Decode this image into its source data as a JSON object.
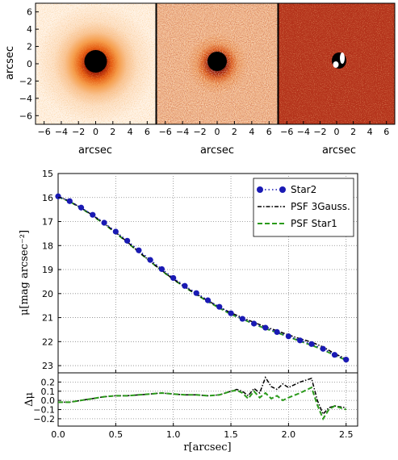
{
  "chart_data": [
    {
      "type": "heatmap",
      "panel": "image-left",
      "ylabel": "arcsec",
      "xlabel": "arcsec",
      "xticks": [
        "−6",
        "−4",
        "−2",
        "0",
        "2",
        "4",
        "6"
      ],
      "yticks": [
        "6",
        "4",
        "2",
        "0",
        "−2",
        "−4",
        "−6"
      ],
      "xlim": [
        -7,
        7
      ],
      "ylim": [
        -7,
        7
      ],
      "colormap": [
        "#ffffff",
        "#f7c08a",
        "#ee7a22",
        "#c13a0a",
        "#6a0e04",
        "#000000"
      ],
      "peak_core_radius": 1.2
    },
    {
      "type": "heatmap",
      "panel": "image-middle",
      "xlabel": "arcsec",
      "xticks": [
        "−6",
        "−4",
        "−2",
        "0",
        "2",
        "4",
        "6"
      ],
      "xlim": [
        -7,
        7
      ],
      "ylim": [
        -7,
        7
      ],
      "peak_core_radius": 1.1
    },
    {
      "type": "heatmap",
      "panel": "image-right",
      "xlabel": "arcsec",
      "xticks": [
        "−6",
        "−4",
        "−2",
        "0",
        "2",
        "4",
        "6"
      ],
      "xlim": [
        -7,
        7
      ],
      "ylim": [
        -7,
        7
      ],
      "residual_background": "#b4321a"
    },
    {
      "type": "line",
      "panel": "profile",
      "ylabel": "μ[mag arcsec⁻²]",
      "xlim": [
        0,
        2.6
      ],
      "ylim": [
        23.3,
        15
      ],
      "yticks": [
        "15",
        "16",
        "17",
        "18",
        "19",
        "20",
        "21",
        "22",
        "23"
      ],
      "grid": true,
      "legend_position": "top-right",
      "series": [
        {
          "name": "Star2",
          "color": "#1a1ab4",
          "style": "dot-marker",
          "x": [
            0.0,
            0.1,
            0.2,
            0.3,
            0.4,
            0.5,
            0.6,
            0.7,
            0.8,
            0.9,
            1.0,
            1.1,
            1.2,
            1.3,
            1.4,
            1.5,
            1.6,
            1.7,
            1.8,
            1.9,
            2.0,
            2.1,
            2.2,
            2.3,
            2.4,
            2.5
          ],
          "y": [
            15.95,
            16.15,
            16.42,
            16.72,
            17.05,
            17.42,
            17.8,
            18.2,
            18.6,
            18.98,
            19.35,
            19.68,
            19.98,
            20.28,
            20.55,
            20.82,
            21.05,
            21.25,
            21.42,
            21.6,
            21.78,
            21.95,
            22.1,
            22.3,
            22.55,
            22.75
          ]
        },
        {
          "name": "PSF 3Gauss.",
          "color": "#000000",
          "style": "dash-dot",
          "x": [
            0.0,
            0.1,
            0.2,
            0.3,
            0.4,
            0.5,
            0.6,
            0.7,
            0.8,
            0.9,
            1.0,
            1.1,
            1.2,
            1.3,
            1.4,
            1.5,
            1.6,
            1.7,
            1.8,
            1.9,
            2.0,
            2.1,
            2.2,
            2.3,
            2.4,
            2.5
          ],
          "y": [
            15.95,
            16.16,
            16.43,
            16.74,
            17.08,
            17.45,
            17.85,
            18.26,
            18.66,
            19.04,
            19.4,
            19.72,
            20.02,
            20.3,
            20.56,
            20.8,
            21.0,
            21.2,
            21.38,
            21.55,
            21.72,
            21.88,
            22.02,
            22.22,
            22.5,
            22.72
          ]
        },
        {
          "name": "PSF Star1",
          "color": "#2a9a1a",
          "style": "dashed",
          "x": [
            0.0,
            0.1,
            0.2,
            0.3,
            0.4,
            0.5,
            0.6,
            0.7,
            0.8,
            0.9,
            1.0,
            1.1,
            1.2,
            1.3,
            1.4,
            1.5,
            1.6,
            1.7,
            1.8,
            1.9,
            2.0,
            2.1,
            2.2,
            2.3,
            2.4,
            2.5
          ],
          "y": [
            15.97,
            16.17,
            16.44,
            16.76,
            17.1,
            17.47,
            17.87,
            18.27,
            18.67,
            19.05,
            19.41,
            19.73,
            20.04,
            20.33,
            20.6,
            20.86,
            21.06,
            21.27,
            21.46,
            21.62,
            21.8,
            21.98,
            22.15,
            22.34,
            22.57,
            22.77
          ]
        }
      ]
    },
    {
      "type": "line",
      "panel": "residual",
      "ylabel": "Δμ",
      "xlabel": "r[arcsec]",
      "xlim": [
        0,
        2.6
      ],
      "ylim": [
        -0.28,
        0.3
      ],
      "xticks": [
        "0.0",
        "0.5",
        "1.0",
        "1.5",
        "2.0",
        "2.5"
      ],
      "yticks": [
        "0.2",
        "0.1",
        "0.0",
        "−0.1",
        "−0.2"
      ],
      "grid": true,
      "series": [
        {
          "color": "#000000",
          "style": "dash-dot",
          "x": [
            0.0,
            0.1,
            0.2,
            0.3,
            0.4,
            0.5,
            0.6,
            0.7,
            0.8,
            0.9,
            1.0,
            1.1,
            1.2,
            1.3,
            1.4,
            1.5,
            1.55,
            1.6,
            1.65,
            1.7,
            1.75,
            1.8,
            1.85,
            1.9,
            1.95,
            2.0,
            2.1,
            2.2,
            2.25,
            2.3,
            2.35,
            2.4,
            2.5
          ],
          "y": [
            -0.02,
            -0.02,
            0.0,
            0.02,
            0.04,
            0.05,
            0.05,
            0.06,
            0.07,
            0.08,
            0.07,
            0.06,
            0.06,
            0.05,
            0.06,
            0.1,
            0.12,
            0.1,
            0.05,
            0.13,
            0.08,
            0.25,
            0.15,
            0.12,
            0.18,
            0.14,
            0.2,
            0.24,
            0.0,
            -0.15,
            -0.08,
            -0.06,
            -0.08
          ]
        },
        {
          "color": "#2a9a1a",
          "style": "dashed",
          "x": [
            0.0,
            0.1,
            0.2,
            0.3,
            0.4,
            0.5,
            0.6,
            0.7,
            0.8,
            0.9,
            1.0,
            1.1,
            1.2,
            1.3,
            1.4,
            1.5,
            1.55,
            1.6,
            1.65,
            1.7,
            1.75,
            1.8,
            1.85,
            1.9,
            1.95,
            2.0,
            2.1,
            2.2,
            2.25,
            2.3,
            2.35,
            2.4,
            2.5
          ],
          "y": [
            -0.02,
            -0.02,
            0.0,
            0.02,
            0.04,
            0.05,
            0.05,
            0.06,
            0.07,
            0.08,
            0.07,
            0.06,
            0.06,
            0.05,
            0.06,
            0.1,
            0.11,
            0.08,
            0.02,
            0.1,
            0.03,
            0.08,
            0.02,
            0.05,
            0.0,
            0.03,
            0.08,
            0.14,
            -0.05,
            -0.2,
            -0.1,
            -0.06,
            -0.1
          ]
        }
      ]
    }
  ]
}
